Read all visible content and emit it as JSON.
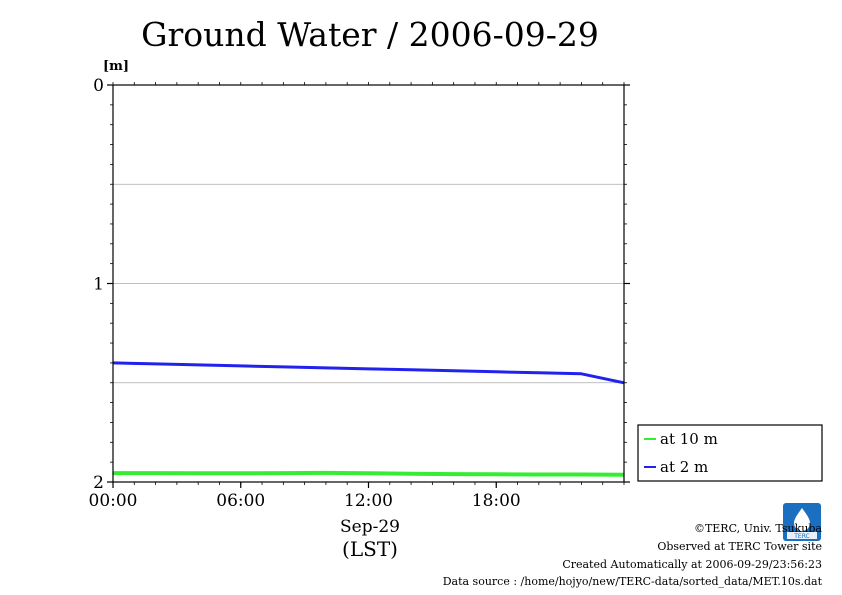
{
  "chart_data": {
    "type": "line",
    "title": "Ground Water / 2006-09-29",
    "ylabel": "[m]",
    "xlabel": "Sep-29",
    "xlabel2": "(LST)",
    "ylim": [
      0,
      2
    ],
    "y_inverted": true,
    "y_ticks": [
      "0",
      "1",
      "2"
    ],
    "x_range_hours": [
      0,
      24
    ],
    "x_ticks": [
      {
        "hour": 0,
        "label": "00:00"
      },
      {
        "hour": 6,
        "label": "06:00"
      },
      {
        "hour": 12,
        "label": "12:00"
      },
      {
        "hour": 18,
        "label": "18:00"
      }
    ],
    "grid": true,
    "legend_position": "right",
    "series": [
      {
        "name": "at 10 m",
        "color": "#33ee33",
        "x": [
          0,
          2,
          4,
          6,
          8,
          10,
          12,
          14,
          16,
          18,
          20,
          22,
          24
        ],
        "y": [
          1.955,
          1.955,
          1.956,
          1.956,
          1.955,
          1.954,
          1.956,
          1.958,
          1.96,
          1.961,
          1.962,
          1.962,
          1.963
        ]
      },
      {
        "name": "at 2 m",
        "color": "#2222ee",
        "x": [
          0,
          2,
          4,
          6,
          8,
          10,
          12,
          14,
          16,
          18,
          20,
          22,
          24
        ],
        "y": [
          1.4,
          1.405,
          1.41,
          1.415,
          1.42,
          1.425,
          1.43,
          1.435,
          1.44,
          1.445,
          1.45,
          1.455,
          1.5
        ]
      }
    ]
  },
  "footer": {
    "copyright": "©TERC, Univ. Tsukuba",
    "observed": "Observed at TERC Tower site",
    "created": "Created Automatically at 2006-09-29/23:56:23",
    "source": "Data source : /home/hojyo/new/TERC-data/sorted_data/MET.10s.dat",
    "logo_text": "TERC"
  }
}
